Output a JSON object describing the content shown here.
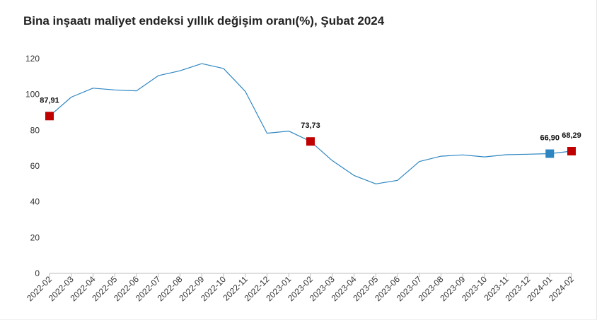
{
  "chart_data": {
    "type": "line",
    "title": "Bina inşaatı maliyet endeksi yıllık değişim oranı(%), Şubat 2024",
    "categories": [
      "2022-02",
      "2022-03",
      "2022-04",
      "2022-05",
      "2022-06",
      "2022-07",
      "2022-08",
      "2022-09",
      "2022-10",
      "2022-11",
      "2022-12",
      "2023-01",
      "2023-02",
      "2023-03",
      "2023-04",
      "2023-05",
      "2023-06",
      "2023-07",
      "2023-08",
      "2023-09",
      "2023-10",
      "2023-11",
      "2023-12",
      "2024-01",
      "2024-02"
    ],
    "series": [
      {
        "values": [
          87.91,
          98.5,
          103.5,
          102.5,
          102.0,
          110.5,
          113.2,
          117.2,
          114.5,
          101.7,
          78.3,
          79.5,
          73.73,
          63.0,
          54.7,
          50.0,
          52.0,
          62.5,
          65.5,
          66.2,
          65.1,
          66.3,
          66.6,
          66.9,
          68.29
        ],
        "color": "#2e86c1"
      }
    ],
    "data_labels": [
      {
        "category": "2022-02",
        "value": 87.91,
        "text": "87,91",
        "marker_color": "#c00000"
      },
      {
        "category": "2023-02",
        "value": 73.73,
        "text": "73,73",
        "marker_color": "#c00000"
      },
      {
        "category": "2024-01",
        "value": 66.9,
        "text": "66,90",
        "marker_color": "#2e86c1"
      },
      {
        "category": "2024-02",
        "value": 68.29,
        "text": "68,29",
        "marker_color": "#c00000"
      }
    ],
    "yticks": [
      "0",
      "20",
      "40",
      "60",
      "80",
      "100",
      "120"
    ],
    "ylim": [
      0,
      120
    ],
    "xlabel": "",
    "ylabel": "",
    "grid": false,
    "legend": "none"
  }
}
